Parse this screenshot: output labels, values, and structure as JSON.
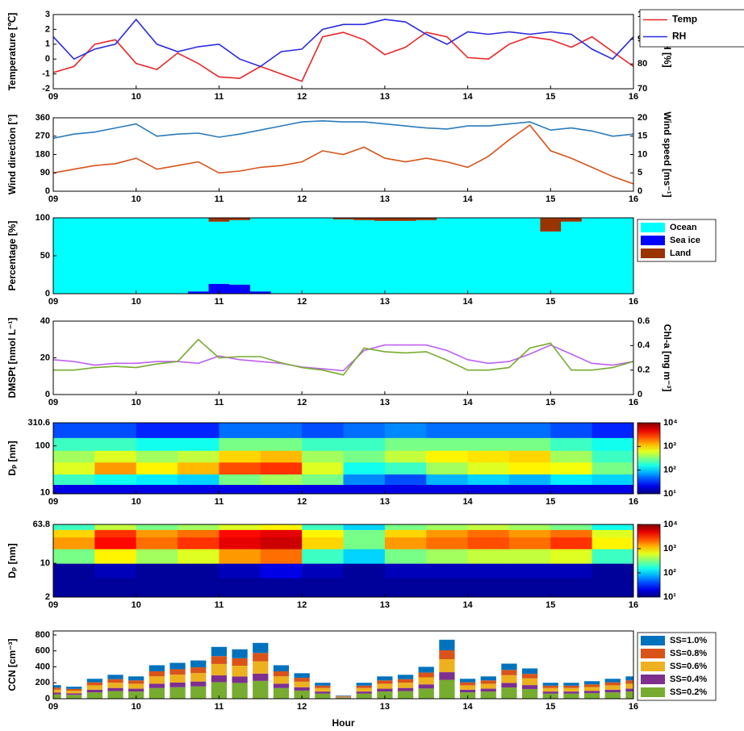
{
  "chart_data": [
    {
      "type": "line",
      "xlim": [
        9,
        16
      ],
      "xticks": [
        {
          "value": 9,
          "label": "09"
        },
        10,
        11,
        12,
        13,
        14,
        15,
        16
      ],
      "ylim": [
        -2,
        3
      ],
      "yticks": [
        -2,
        -1,
        0,
        1,
        2,
        3
      ],
      "y2lim": [
        70,
        100
      ],
      "y2ticks": [
        70,
        80,
        90,
        100
      ],
      "ylabel": "Temperature [℃]",
      "y2label": "RH [%]",
      "legend": "outside-right",
      "x": [
        9,
        9.25,
        9.5,
        9.75,
        10,
        10.25,
        10.5,
        10.75,
        11,
        11.25,
        11.5,
        11.75,
        12,
        12.25,
        12.5,
        12.75,
        13,
        13.25,
        13.5,
        13.75,
        14,
        14.25,
        14.5,
        14.75,
        15,
        15.25,
        15.5,
        15.75,
        16
      ],
      "series": [
        {
          "name": "Temp",
          "color": "#e8262a",
          "values": [
            -0.9,
            -0.5,
            1.0,
            1.3,
            -0.3,
            -0.7,
            0.4,
            -0.3,
            -1.2,
            -1.3,
            -0.5,
            -1.0,
            -1.5,
            1.5,
            1.8,
            1.3,
            0.3,
            0.8,
            1.8,
            1.5,
            0.1,
            0,
            1.0,
            1.5,
            1.3,
            0.8,
            1.5,
            0.5,
            -0.5
          ]
        },
        {
          "name": "RH",
          "color": "#2a2ae0",
          "axis": "y2",
          "values": [
            91,
            82,
            86,
            88,
            98,
            88,
            85,
            87,
            88,
            82,
            79,
            85,
            86,
            94,
            96,
            96,
            98,
            97,
            92,
            88,
            93,
            92,
            93,
            92,
            93,
            92,
            86,
            82,
            91
          ]
        }
      ]
    },
    {
      "type": "line",
      "xlim": [
        9,
        16
      ],
      "xticks": [
        {
          "value": 9,
          "label": "09"
        },
        10,
        11,
        12,
        13,
        14,
        15,
        16
      ],
      "ylim": [
        0,
        360
      ],
      "yticks": [
        0,
        90,
        180,
        270,
        360
      ],
      "y2lim": [
        0,
        20
      ],
      "y2ticks": [
        0,
        5,
        10,
        15,
        20
      ],
      "ylabel": "Wind direction [°]",
      "y2label": "Wind speed [ms⁻¹]",
      "x": [
        9,
        9.25,
        9.5,
        9.75,
        10,
        10.25,
        10.5,
        10.75,
        11,
        11.25,
        11.5,
        11.75,
        12,
        12.25,
        12.5,
        12.75,
        13,
        13.25,
        13.5,
        13.75,
        14,
        14.25,
        14.5,
        14.75,
        15,
        15.25,
        15.5,
        15.75,
        16
      ],
      "series": [
        {
          "color": "#2b7bba",
          "values": [
            260,
            280,
            290,
            310,
            330,
            270,
            280,
            285,
            265,
            280,
            300,
            320,
            340,
            345,
            340,
            340,
            330,
            320,
            310,
            305,
            320,
            320,
            330,
            340,
            300,
            310,
            295,
            270,
            280
          ]
        },
        {
          "color": "#d95319",
          "axis": "y2",
          "values": [
            5,
            6,
            7,
            7.5,
            9,
            6,
            7,
            8,
            5,
            5.5,
            6.5,
            7,
            8,
            11,
            10,
            12,
            9,
            8,
            9,
            8,
            6.5,
            9.5,
            14,
            18,
            11,
            9,
            6.5,
            4,
            2
          ]
        }
      ]
    },
    {
      "type": "bar",
      "stacked": true,
      "stack_order": [
        1,
        0,
        2
      ],
      "xlim": [
        9,
        16
      ],
      "xticks": [
        {
          "value": 9,
          "label": "09"
        },
        10,
        11,
        12,
        13,
        14,
        15,
        16
      ],
      "ylim": [
        0,
        100
      ],
      "yticks": [
        0,
        50,
        100
      ],
      "ylabel": "Percentage [%]",
      "legend": "outside-right",
      "x": [
        9,
        9.25,
        9.5,
        9.75,
        10,
        10.25,
        10.5,
        10.75,
        11,
        11.25,
        11.5,
        11.75,
        12,
        12.25,
        12.5,
        12.75,
        13,
        13.25,
        13.5,
        13.75,
        14,
        14.25,
        14.5,
        14.75,
        15,
        15.25,
        15.5,
        15.75,
        16
      ],
      "series": [
        {
          "name": "Ocean",
          "color": "#00ffff",
          "values": [
            100,
            100,
            100,
            100,
            100,
            100,
            100,
            97,
            82,
            85,
            97,
            100,
            100,
            100,
            98,
            97,
            96,
            96,
            97,
            100,
            100,
            100,
            100,
            100,
            82,
            95,
            100,
            100,
            100
          ]
        },
        {
          "name": "Sea ice",
          "color": "#0000ff",
          "values": [
            0,
            0,
            0,
            0,
            0,
            0,
            0,
            3,
            13,
            12,
            3,
            0,
            0,
            0,
            0,
            0,
            0,
            0,
            0,
            0,
            0,
            0,
            0,
            0,
            0,
            0,
            0,
            0,
            0
          ]
        },
        {
          "name": "Land",
          "color": "#993300",
          "values": [
            0,
            0,
            0,
            0,
            0,
            0,
            0,
            0,
            5,
            3,
            0,
            0,
            0,
            0,
            2,
            3,
            4,
            4,
            3,
            0,
            0,
            0,
            0,
            0,
            18,
            5,
            0,
            0,
            0
          ]
        }
      ]
    },
    {
      "type": "line",
      "xlim": [
        9,
        16
      ],
      "xticks": [
        {
          "value": 9,
          "label": "09"
        },
        10,
        11,
        12,
        13,
        14,
        15,
        16
      ],
      "ylim": [
        0,
        40
      ],
      "yticks": [
        0,
        20,
        40
      ],
      "y2lim": [
        0,
        0.6
      ],
      "y2ticks": [
        0,
        0.2,
        0.4,
        0.6
      ],
      "ylabel": "DMSPt [nmol L⁻¹]",
      "y2label": "Chl-a [mg m⁻³]",
      "x": [
        9,
        9.25,
        9.5,
        9.75,
        10,
        10.25,
        10.5,
        10.75,
        11,
        11.25,
        11.5,
        11.75,
        12,
        12.25,
        12.5,
        12.75,
        13,
        13.25,
        13.5,
        13.75,
        14,
        14.25,
        14.5,
        14.75,
        15,
        15.25,
        15.5,
        15.75,
        16
      ],
      "series": [
        {
          "color": "#c060f0",
          "values": [
            19,
            18,
            16,
            17,
            17,
            18,
            18,
            17,
            21,
            19,
            18,
            17,
            15,
            14,
            13,
            24,
            27,
            27,
            27,
            24,
            19,
            17,
            18,
            22,
            27,
            22,
            17,
            16,
            18
          ]
        },
        {
          "color": "#77ac30",
          "axis": "y2",
          "values": [
            0.2,
            0.2,
            0.22,
            0.23,
            0.22,
            0.25,
            0.27,
            0.45,
            0.3,
            0.31,
            0.31,
            0.26,
            0.22,
            0.2,
            0.16,
            0.38,
            0.35,
            0.34,
            0.35,
            0.28,
            0.2,
            0.2,
            0.22,
            0.38,
            0.42,
            0.2,
            0.2,
            0.22,
            0.27
          ]
        }
      ]
    },
    {
      "type": "heatmap",
      "log_y": true,
      "colormap": "jet",
      "xlim": [
        9,
        16
      ],
      "xticks": [
        {
          "value": 9,
          "label": "09"
        },
        10,
        11,
        12,
        13,
        14,
        15,
        16
      ],
      "ylim": [
        9.5,
        310.6
      ],
      "yticks": [
        10,
        100,
        310.6
      ],
      "ylabel": "Dₚ [nm]",
      "clim": [
        10,
        10000
      ],
      "cticks": [
        {
          "value": 10,
          "label": "10¹"
        },
        {
          "value": 100,
          "label": "10²"
        },
        {
          "value": 1000,
          "label": "10³"
        },
        {
          "value": 10000,
          "label": "10⁴"
        }
      ],
      "x": [
        9,
        9.5,
        10,
        10.5,
        11,
        11.5,
        12,
        12.5,
        13,
        13.5,
        14,
        14.5,
        15,
        15.5,
        16
      ],
      "y": [
        9.5,
        15,
        25,
        45,
        80,
        150,
        310.6
      ],
      "values": [
        [
          20,
          20,
          20,
          20,
          20,
          20,
          20,
          20,
          20,
          20,
          20,
          20,
          20,
          20
        ],
        [
          200,
          150,
          120,
          100,
          300,
          400,
          300,
          60,
          40,
          80,
          100,
          80,
          120,
          100
        ],
        [
          600,
          1500,
          800,
          1200,
          2500,
          3000,
          600,
          150,
          200,
          400,
          600,
          800,
          700,
          300
        ],
        [
          400,
          600,
          400,
          500,
          1000,
          1200,
          400,
          300,
          500,
          800,
          900,
          1000,
          400,
          200
        ],
        [
          200,
          200,
          150,
          150,
          300,
          300,
          200,
          200,
          300,
          300,
          300,
          300,
          200,
          150
        ],
        [
          40,
          40,
          30,
          30,
          50,
          50,
          40,
          50,
          60,
          50,
          50,
          50,
          40,
          30
        ]
      ]
    },
    {
      "type": "heatmap",
      "log_y": true,
      "colormap": "jet",
      "xlim": [
        9,
        16
      ],
      "xticks": [
        {
          "value": 9,
          "label": "09"
        },
        10,
        11,
        12,
        13,
        14,
        15,
        16
      ],
      "ylim": [
        2,
        63.8
      ],
      "yticks": [
        2,
        10,
        63.8
      ],
      "ylabel": "Dₚ [nm]",
      "clim": [
        10,
        10000
      ],
      "cticks": [
        {
          "value": 10,
          "label": "10¹"
        },
        {
          "value": 100,
          "label": "10²"
        },
        {
          "value": 1000,
          "label": "10³"
        },
        {
          "value": 10000,
          "label": "10⁴"
        }
      ],
      "x": [
        9,
        9.5,
        10,
        10.5,
        11,
        11.5,
        12,
        12.5,
        13,
        13.5,
        14,
        14.5,
        15,
        15.5,
        16
      ],
      "y": [
        2,
        5,
        10,
        20,
        35,
        50,
        63.8
      ],
      "values": [
        [
          12,
          12,
          12,
          12,
          12,
          12,
          12,
          12,
          12,
          12,
          12,
          12,
          12,
          12
        ],
        [
          12,
          15,
          12,
          12,
          15,
          20,
          15,
          12,
          15,
          15,
          15,
          15,
          15,
          12
        ],
        [
          300,
          800,
          400,
          600,
          1500,
          2000,
          200,
          100,
          300,
          400,
          500,
          500,
          600,
          200
        ],
        [
          1500,
          4000,
          2000,
          3000,
          5000,
          6000,
          1000,
          300,
          1500,
          2000,
          2500,
          2000,
          3000,
          800
        ],
        [
          1000,
          3000,
          1500,
          2000,
          4000,
          5000,
          800,
          300,
          1000,
          1500,
          2000,
          1500,
          2000,
          600
        ],
        [
          200,
          500,
          300,
          400,
          600,
          800,
          200,
          100,
          300,
          400,
          500,
          400,
          300,
          150
        ]
      ]
    },
    {
      "type": "bar",
      "stacked": true,
      "stack_order": [
        4,
        3,
        2,
        1,
        0
      ],
      "xlim": [
        9,
        16
      ],
      "xticks": [
        {
          "value": 9,
          "label": "09"
        },
        10,
        11,
        12,
        13,
        14,
        15,
        16
      ],
      "ylim": [
        0,
        850
      ],
      "yticks": [
        0,
        200,
        400,
        600,
        800
      ],
      "ylabel": "CCN [cm⁻³]",
      "xlabel": "Hour",
      "legend": "outside-right",
      "x": [
        9,
        9.25,
        9.5,
        9.75,
        10,
        10.25,
        10.5,
        10.75,
        11,
        11.25,
        11.5,
        11.75,
        12,
        12.25,
        12.5,
        12.75,
        13,
        13.25,
        13.5,
        13.75,
        14,
        14.25,
        14.5,
        14.75,
        15,
        15.25,
        15.5,
        15.75,
        16
      ],
      "series": [
        {
          "name": "SS=1.0%",
          "color": "#0072bd",
          "values": [
            31,
            27,
            44,
            54,
            50,
            76,
            80,
            86,
            116,
            112,
            126,
            76,
            58,
            36,
            7,
            36,
            50,
            54,
            72,
            133,
            44,
            50,
            79,
            68,
            36,
            36,
            40,
            44,
            50
          ]
        },
        {
          "name": "SS=0.8%",
          "color": "#d95319",
          "values": [
            26,
            23,
            38,
            45,
            42,
            63,
            68,
            72,
            98,
            93,
            105,
            63,
            48,
            30,
            6,
            30,
            42,
            45,
            60,
            111,
            38,
            42,
            66,
            57,
            30,
            30,
            33,
            38,
            42
          ]
        },
        {
          "name": "SS=0.6%",
          "color": "#edb120",
          "values": [
            37,
            33,
            55,
            66,
            62,
            92,
            99,
            106,
            143,
            136,
            154,
            92,
            70,
            44,
            9,
            44,
            62,
            66,
            88,
            163,
            55,
            62,
            97,
            84,
            44,
            44,
            48,
            55,
            62
          ]
        },
        {
          "name": "SS=0.4%",
          "color": "#7e2f8e",
          "values": [
            22,
            20,
            33,
            39,
            36,
            55,
            59,
            62,
            85,
            81,
            91,
            55,
            42,
            26,
            5,
            26,
            36,
            39,
            52,
            96,
            33,
            36,
            57,
            49,
            26,
            26,
            29,
            33,
            36
          ]
        },
        {
          "name": "SS=0.2%",
          "color": "#77ac30",
          "values": [
            54,
            48,
            80,
            96,
            90,
            134,
            144,
            154,
            208,
            198,
            224,
            134,
            102,
            64,
            13,
            64,
            90,
            96,
            128,
            237,
            80,
            90,
            141,
            122,
            64,
            64,
            70,
            80,
            90
          ]
        }
      ]
    }
  ]
}
